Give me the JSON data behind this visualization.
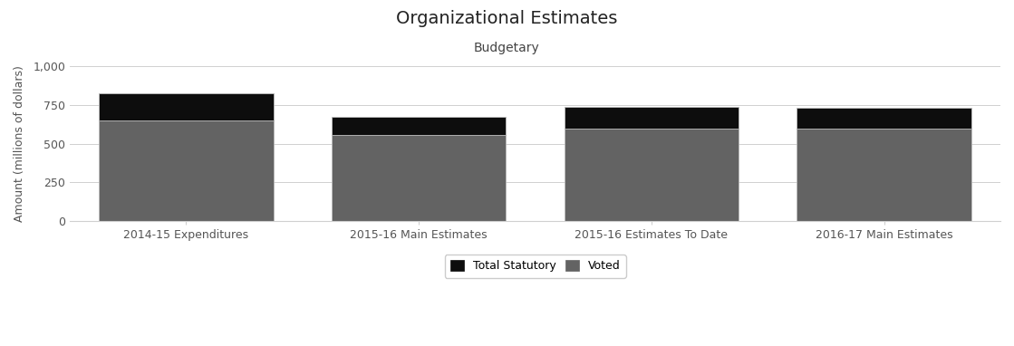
{
  "title": "Organizational Estimates",
  "subtitle": "Budgetary",
  "ylabel": "Amount (millions of dollars)",
  "categories": [
    "2014-15 Expenditures",
    "2015-16 Main Estimates",
    "2015-16 Estimates To Date",
    "2016-17 Main Estimates"
  ],
  "voted": [
    650,
    558,
    600,
    600
  ],
  "statutory": [
    175,
    115,
    138,
    132
  ],
  "voted_color": "#636363",
  "statutory_color": "#0d0d0d",
  "background_color": "#ffffff",
  "ylim": [
    0,
    1000
  ],
  "yticks": [
    0,
    250,
    500,
    750,
    1000
  ],
  "ytick_labels": [
    "0",
    "250",
    "500",
    "750",
    "1,000"
  ],
  "bar_width": 0.75,
  "legend_labels": [
    "Total Statutory",
    "Voted"
  ],
  "figsize": [
    11.19,
    3.82
  ],
  "dpi": 100,
  "title_fontsize": 14,
  "subtitle_fontsize": 10,
  "tick_fontsize": 9,
  "ylabel_fontsize": 9,
  "legend_fontsize": 9,
  "grid_color": "#d0d0d0",
  "spine_color": "#d0d0d0",
  "tick_color": "#555555"
}
